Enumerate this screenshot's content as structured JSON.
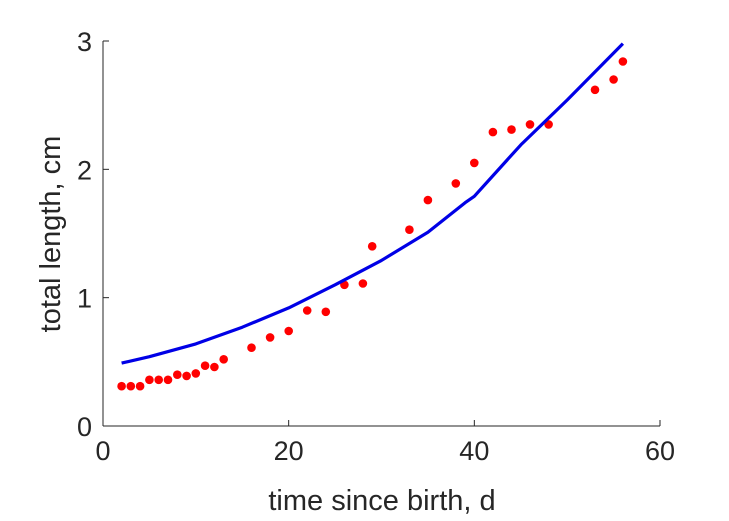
{
  "chart_data": {
    "type": "scatter",
    "title": "",
    "xlabel": "time since birth, d",
    "ylabel": "total length, cm",
    "xlim": [
      0,
      60
    ],
    "ylim": [
      0,
      3
    ],
    "xticks": [
      0,
      20,
      40,
      60
    ],
    "yticks": [
      0,
      1,
      2,
      3
    ],
    "grid": false,
    "legend": "none",
    "series": [
      {
        "kind": "scatter",
        "color": "#ff0000",
        "points": [
          [
            2,
            0.31
          ],
          [
            3,
            0.31
          ],
          [
            4,
            0.31
          ],
          [
            5,
            0.36
          ],
          [
            6,
            0.36
          ],
          [
            7,
            0.36
          ],
          [
            8,
            0.4
          ],
          [
            9,
            0.39
          ],
          [
            10,
            0.41
          ],
          [
            11,
            0.47
          ],
          [
            12,
            0.46
          ],
          [
            13,
            0.52
          ],
          [
            16,
            0.61
          ],
          [
            18,
            0.69
          ],
          [
            20,
            0.74
          ],
          [
            22,
            0.9
          ],
          [
            24,
            0.89
          ],
          [
            26,
            1.1
          ],
          [
            28,
            1.11
          ],
          [
            29,
            1.4
          ],
          [
            33,
            1.53
          ],
          [
            35,
            1.76
          ],
          [
            38,
            1.89
          ],
          [
            40,
            2.05
          ],
          [
            42,
            2.29
          ],
          [
            44,
            2.31
          ],
          [
            46,
            2.35
          ],
          [
            48,
            2.35
          ],
          [
            53,
            2.62
          ],
          [
            55,
            2.7
          ],
          [
            56,
            2.84
          ]
        ]
      },
      {
        "kind": "line",
        "color": "#0000e6",
        "points": [
          [
            2,
            0.49
          ],
          [
            5,
            0.54
          ],
          [
            10,
            0.64
          ],
          [
            15,
            0.77
          ],
          [
            20,
            0.92
          ],
          [
            25,
            1.1
          ],
          [
            30,
            1.29
          ],
          [
            35,
            1.51
          ],
          [
            39,
            1.74
          ],
          [
            40,
            1.79
          ],
          [
            45,
            2.19
          ],
          [
            50,
            2.54
          ],
          [
            56,
            2.98
          ]
        ]
      }
    ]
  }
}
